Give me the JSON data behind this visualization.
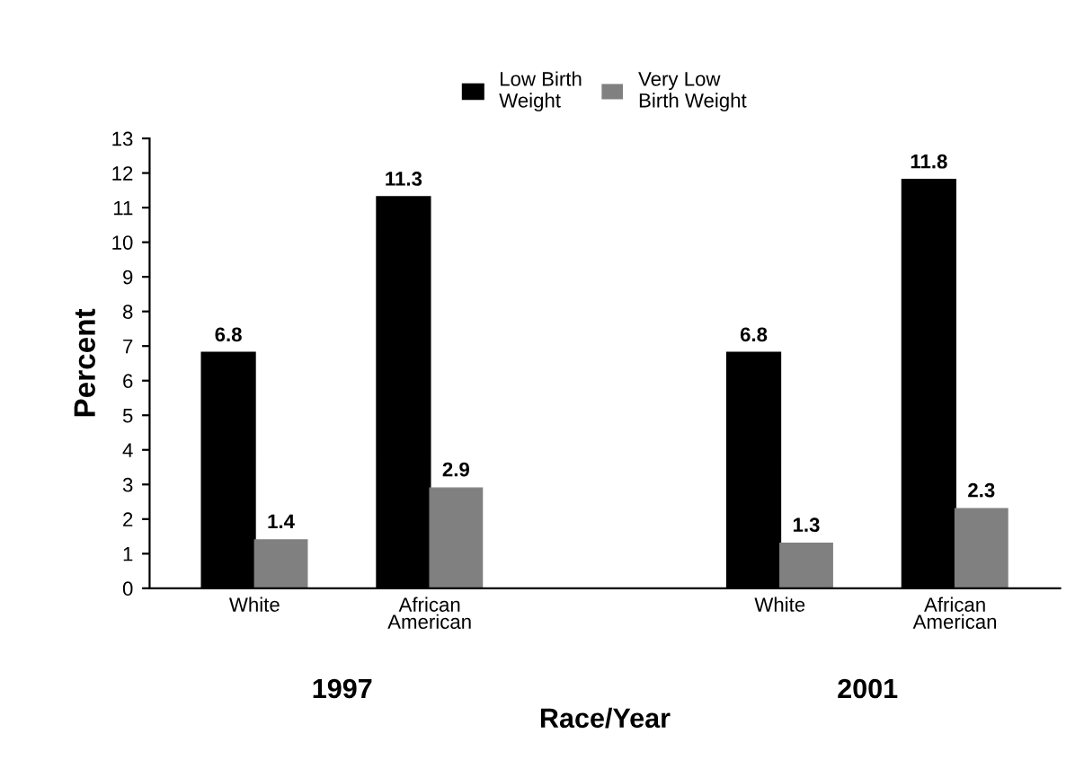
{
  "chart_data": {
    "type": "bar",
    "xlabel": "Race/Year",
    "ylabel": "Percent",
    "categories": [
      "White",
      "African\nAmerican",
      null,
      "White",
      "African\nAmerican"
    ],
    "series": [
      {
        "name": "Low Birth\nWeight",
        "color": "#000000",
        "values": [
          6.8,
          11.3,
          null,
          6.8,
          11.8
        ]
      },
      {
        "name": "Very Low\nBirth Weight",
        "color": "#808080",
        "values": [
          1.4,
          2.9,
          null,
          1.3,
          2.3
        ]
      }
    ],
    "annotations": [
      "1997",
      "2001"
    ],
    "ylim": [
      0,
      13
    ],
    "yticks": [
      0,
      1,
      2,
      3,
      4,
      5,
      6,
      7,
      8,
      9,
      10,
      11,
      12,
      13
    ],
    "data_labels": true,
    "grid": false,
    "legend": "top"
  }
}
